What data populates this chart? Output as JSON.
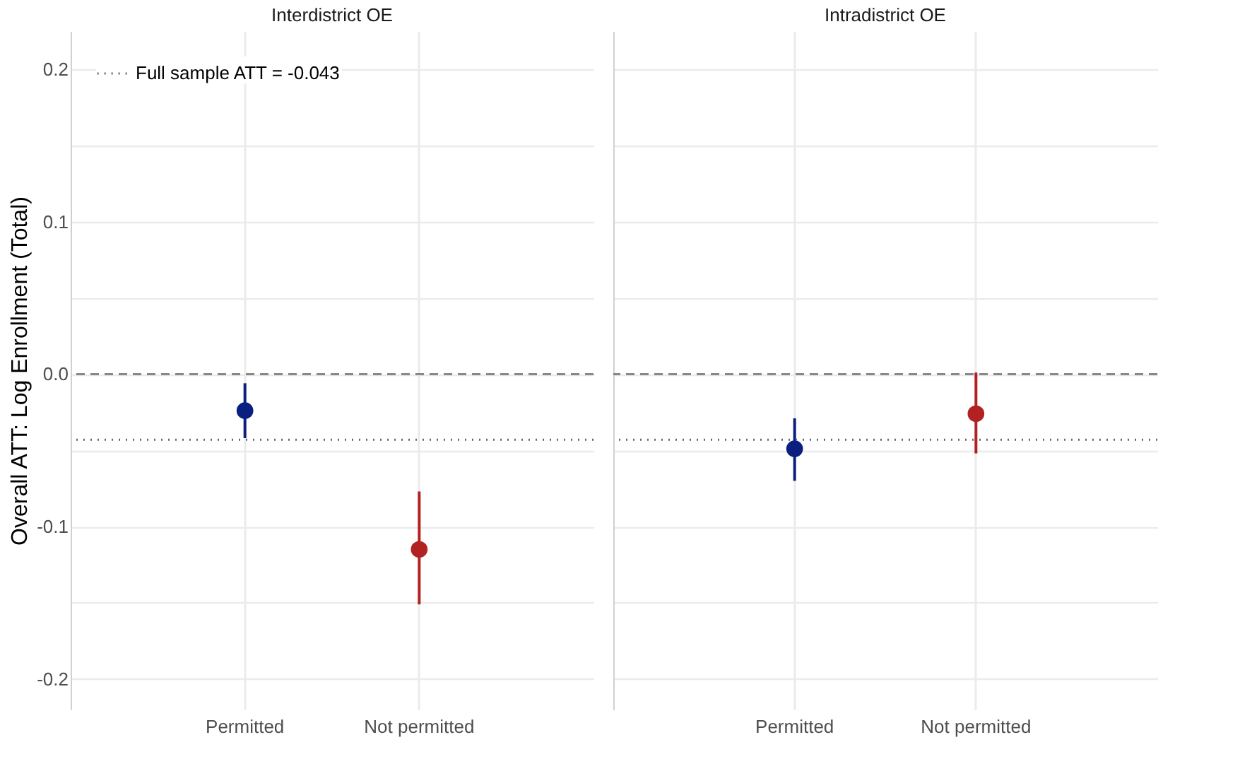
{
  "chart_data": [
    {
      "type": "scatter",
      "title": "Interdistrict OE",
      "ylabel": "Overall ATT: Log Enrollment (Total)",
      "categories": [
        "Permitted",
        "Not permitted"
      ],
      "values": [
        -0.024,
        -0.115
      ],
      "colors": [
        "#0b1f80",
        "#b22222"
      ],
      "errors": [
        [
          -0.042,
          -0.006
        ],
        [
          -0.151,
          -0.077
        ]
      ],
      "ylim": [
        -0.22,
        0.225
      ],
      "yticks": [
        -0.2,
        {
          "value": -0.15,
          "label": null
        },
        -0.1,
        {
          "value": -0.05,
          "label": null
        },
        {
          "value": 0,
          "label": "0.0"
        },
        {
          "value": 0.05,
          "label": null
        },
        0.1,
        {
          "value": 0.15,
          "label": null
        },
        0.2
      ],
      "grid": true,
      "marker": "circle",
      "legend": "top left",
      "ref_lines": [
        {
          "axis": "y",
          "value": 0,
          "color": "#888888",
          "line_style": "dashed"
        },
        {
          "axis": "y",
          "value": -0.043,
          "label": "Full sample ATT = -0.043",
          "color": "#666666",
          "line_style": "dotted"
        }
      ]
    },
    {
      "type": "scatter",
      "title": "Intradistrict OE",
      "categories": [
        "Permitted",
        "Not permitted"
      ],
      "values": [
        -0.049,
        -0.026
      ],
      "colors": [
        "#0b1f80",
        "#b22222"
      ],
      "errors": [
        [
          -0.07,
          -0.029
        ],
        [
          -0.052,
          0.001
        ]
      ],
      "ylim": [
        -0.22,
        0.225
      ],
      "yticks": [
        -0.2,
        {
          "value": -0.15,
          "label": null
        },
        -0.1,
        {
          "value": -0.05,
          "label": null
        },
        {
          "value": 0,
          "label": null
        },
        {
          "value": 0.05,
          "label": null
        },
        0.1,
        {
          "value": 0.15,
          "label": null
        },
        0.2
      ],
      "grid": true,
      "marker": "circle",
      "tick_labels": "x",
      "ref_lines": [
        {
          "axis": "y",
          "value": 0,
          "color": "#888888",
          "line_style": "dashed"
        },
        {
          "axis": "y",
          "value": -0.043,
          "color": "#666666",
          "line_style": "dotted"
        }
      ]
    }
  ]
}
